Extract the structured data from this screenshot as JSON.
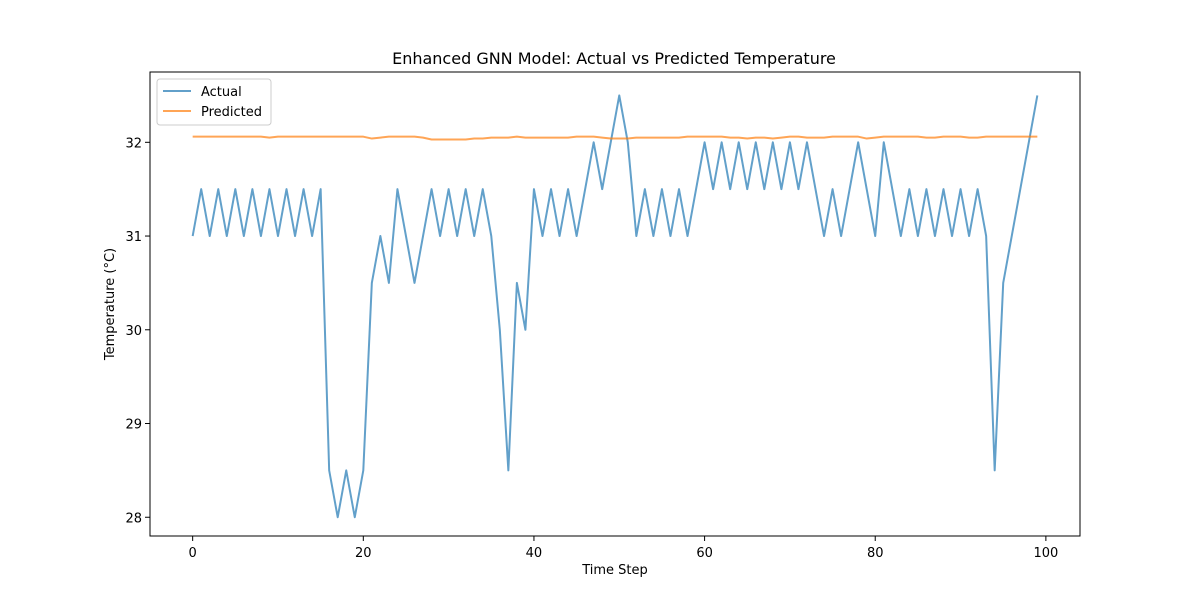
{
  "chart_data": {
    "type": "line",
    "title": "Enhanced GNN Model: Actual vs Predicted Temperature",
    "xlabel": "Time Step",
    "ylabel": "Temperature (°C)",
    "xlim": [
      -5,
      104
    ],
    "ylim": [
      27.8,
      32.75
    ],
    "xticks": [
      0,
      20,
      40,
      60,
      80,
      100
    ],
    "yticks": [
      28,
      29,
      30,
      31,
      32
    ],
    "grid": false,
    "legend_placement": "top-left",
    "series": [
      {
        "name": "Actual",
        "color": "#1f77b4",
        "x": [
          0,
          1,
          2,
          3,
          4,
          5,
          6,
          7,
          8,
          9,
          10,
          11,
          12,
          13,
          14,
          15,
          16,
          17,
          18,
          19,
          20,
          21,
          22,
          23,
          24,
          25,
          26,
          27,
          28,
          29,
          30,
          31,
          32,
          33,
          34,
          35,
          36,
          37,
          38,
          39,
          40,
          41,
          42,
          43,
          44,
          45,
          46,
          47,
          48,
          49,
          50,
          51,
          52,
          53,
          54,
          55,
          56,
          57,
          58,
          59,
          60,
          61,
          62,
          63,
          64,
          65,
          66,
          67,
          68,
          69,
          70,
          71,
          72,
          73,
          74,
          75,
          76,
          77,
          78,
          79,
          80,
          81,
          82,
          83,
          84,
          85,
          86,
          87,
          88,
          89,
          90,
          91,
          92,
          93,
          94,
          95,
          96,
          97,
          98,
          99
        ],
        "y": [
          31,
          31.5,
          31,
          31.5,
          31,
          31.5,
          31,
          31.5,
          31,
          31.5,
          31,
          31.5,
          31,
          31.5,
          31,
          31.5,
          28.5,
          28,
          28.5,
          28,
          28.5,
          30.5,
          31,
          30.5,
          31.5,
          31,
          30.5,
          31,
          31.5,
          31,
          31.5,
          31,
          31.5,
          31,
          31.5,
          31,
          30,
          28.5,
          30.5,
          30,
          31.5,
          31,
          31.5,
          31,
          31.5,
          31,
          31.5,
          32,
          31.5,
          32,
          32.5,
          32,
          31,
          31.5,
          31,
          31.5,
          31,
          31.5,
          31,
          31.5,
          32,
          31.5,
          32,
          31.5,
          32,
          31.5,
          32,
          31.5,
          32,
          31.5,
          32,
          31.5,
          32,
          31.5,
          31,
          31.5,
          31,
          31.5,
          32,
          31.5,
          31,
          32,
          31.5,
          31,
          31.5,
          31,
          31.5,
          31,
          31.5,
          31,
          31.5,
          31,
          31.5,
          31,
          28.5,
          30.5,
          31,
          31.5,
          32,
          32.5
        ]
      },
      {
        "name": "Predicted",
        "color": "#ff7f0e",
        "x": [
          0,
          1,
          2,
          3,
          4,
          5,
          6,
          7,
          8,
          9,
          10,
          11,
          12,
          13,
          14,
          15,
          16,
          17,
          18,
          19,
          20,
          21,
          22,
          23,
          24,
          25,
          26,
          27,
          28,
          29,
          30,
          31,
          32,
          33,
          34,
          35,
          36,
          37,
          38,
          39,
          40,
          41,
          42,
          43,
          44,
          45,
          46,
          47,
          48,
          49,
          50,
          51,
          52,
          53,
          54,
          55,
          56,
          57,
          58,
          59,
          60,
          61,
          62,
          63,
          64,
          65,
          66,
          67,
          68,
          69,
          70,
          71,
          72,
          73,
          74,
          75,
          76,
          77,
          78,
          79,
          80,
          81,
          82,
          83,
          84,
          85,
          86,
          87,
          88,
          89,
          90,
          91,
          92,
          93,
          94,
          95,
          96,
          97,
          98,
          99
        ],
        "y": [
          32.06,
          32.06,
          32.06,
          32.06,
          32.06,
          32.06,
          32.06,
          32.06,
          32.06,
          32.05,
          32.06,
          32.06,
          32.06,
          32.06,
          32.06,
          32.06,
          32.06,
          32.06,
          32.06,
          32.06,
          32.06,
          32.04,
          32.05,
          32.06,
          32.06,
          32.06,
          32.06,
          32.05,
          32.03,
          32.03,
          32.03,
          32.03,
          32.03,
          32.04,
          32.04,
          32.05,
          32.05,
          32.05,
          32.06,
          32.05,
          32.05,
          32.05,
          32.05,
          32.05,
          32.05,
          32.06,
          32.06,
          32.06,
          32.05,
          32.04,
          32.04,
          32.04,
          32.05,
          32.05,
          32.05,
          32.05,
          32.05,
          32.05,
          32.06,
          32.06,
          32.06,
          32.06,
          32.06,
          32.05,
          32.05,
          32.04,
          32.05,
          32.05,
          32.04,
          32.05,
          32.06,
          32.06,
          32.05,
          32.05,
          32.05,
          32.06,
          32.06,
          32.06,
          32.06,
          32.04,
          32.05,
          32.06,
          32.06,
          32.06,
          32.06,
          32.06,
          32.05,
          32.05,
          32.06,
          32.06,
          32.06,
          32.05,
          32.05,
          32.06,
          32.06,
          32.06,
          32.06,
          32.06,
          32.06,
          32.06
        ]
      }
    ]
  }
}
